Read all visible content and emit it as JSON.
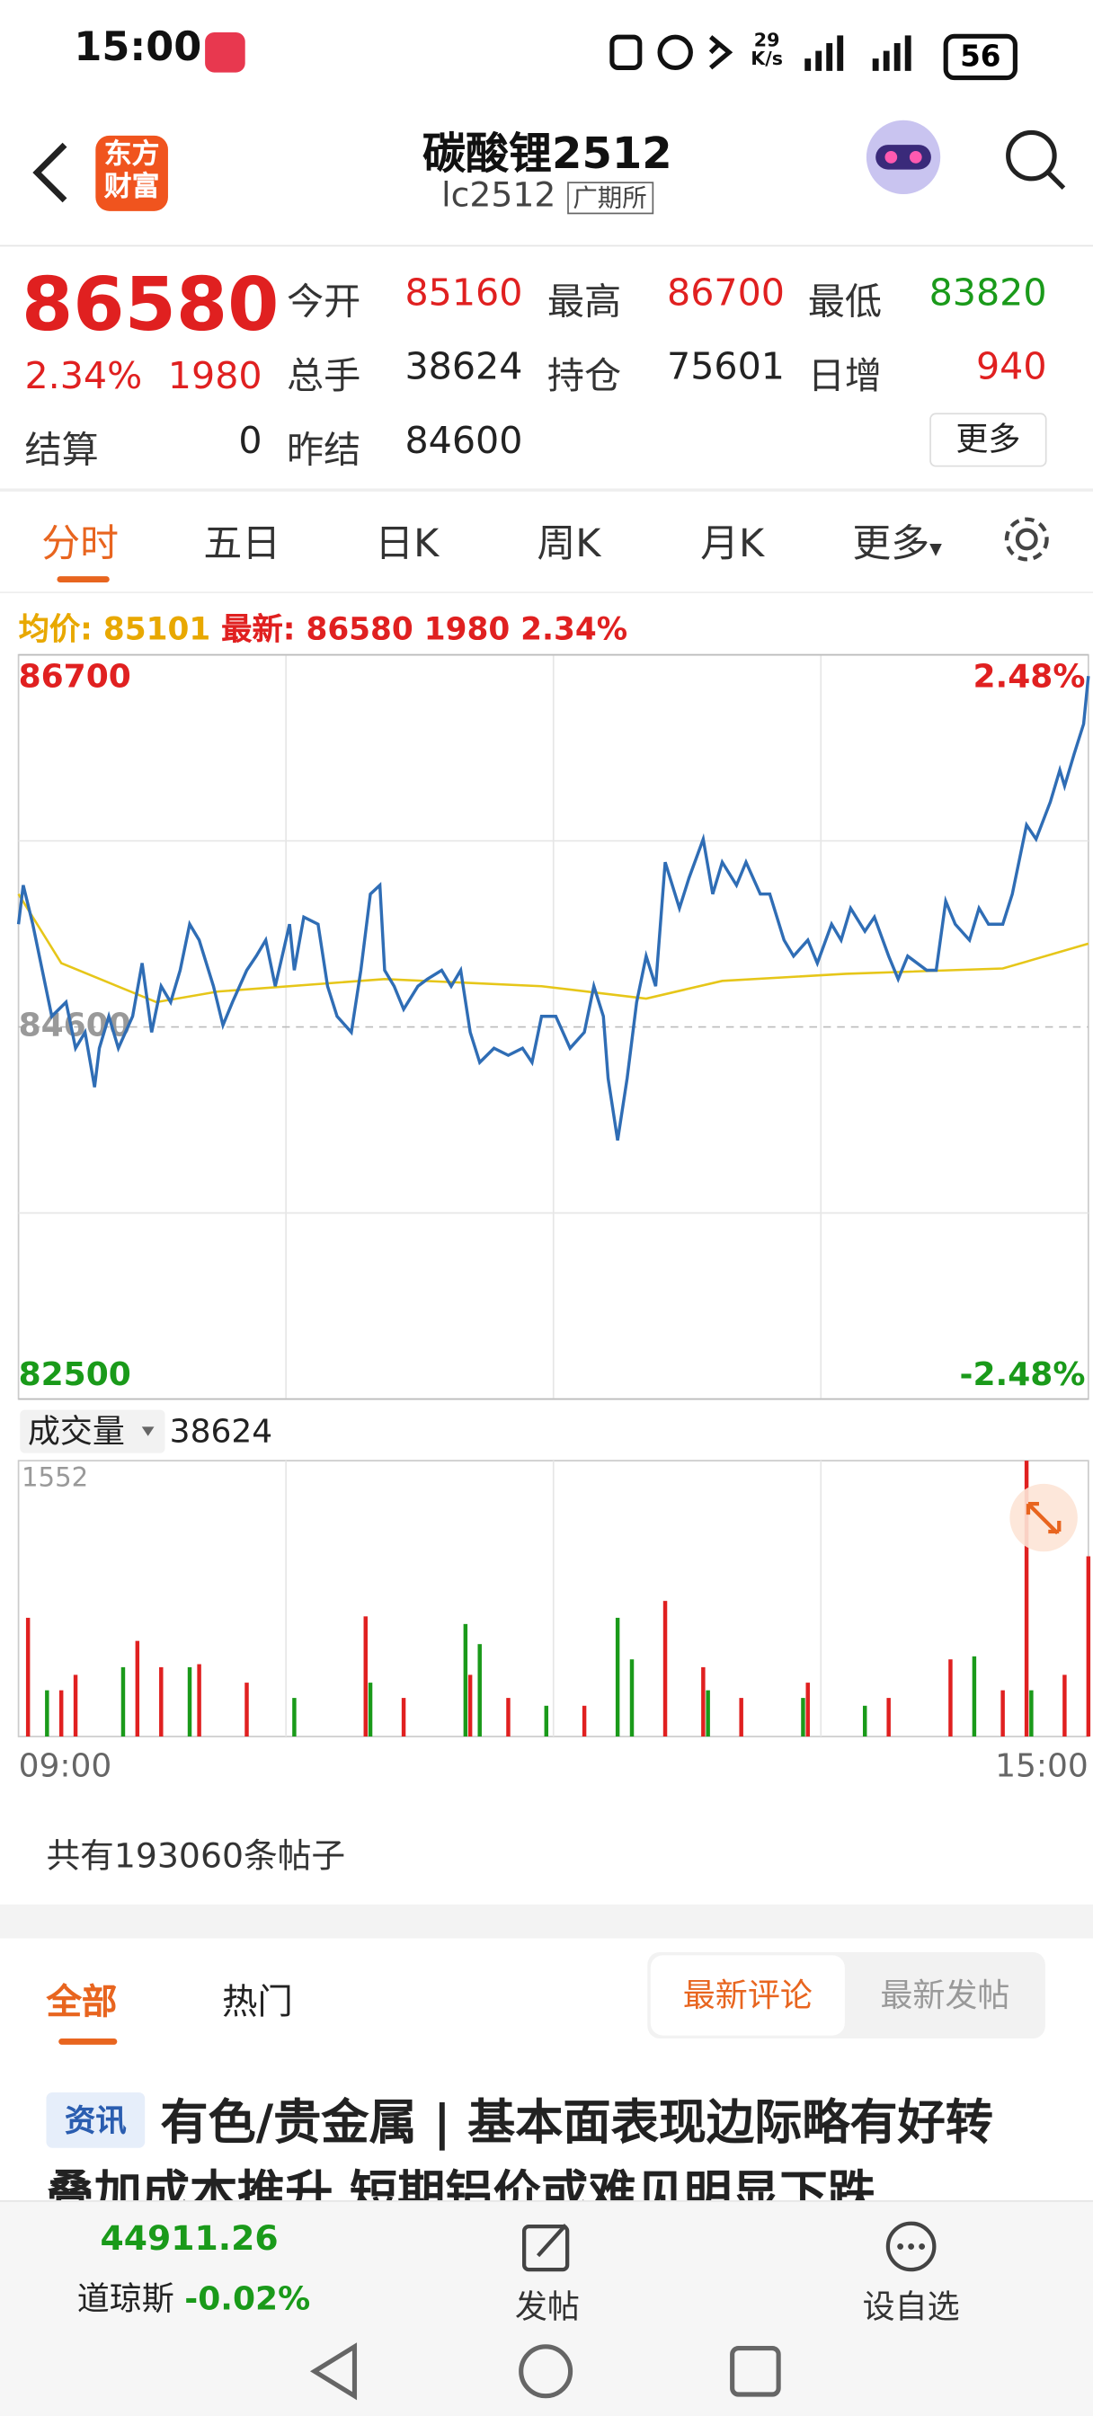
{
  "status_bar": {
    "time": "15:00",
    "net_speed_value": "29",
    "net_speed_unit": "K/s",
    "battery": "56"
  },
  "header": {
    "logo_line1": "东方",
    "logo_line2": "财富",
    "title": "碳酸锂2512",
    "code": "lc2512",
    "exchange": "广期所"
  },
  "quote": {
    "price": "86580",
    "change_pct": "2.34%",
    "change": "1980",
    "more": "更多",
    "fields": [
      {
        "label": "今开",
        "value": "85160"
      },
      {
        "label": "最高",
        "value": "86700"
      },
      {
        "label": "最低",
        "value": "83820"
      },
      {
        "label": "总手",
        "value": "38624"
      },
      {
        "label": "持仓",
        "value": "75601"
      },
      {
        "label": "日增",
        "value": "940"
      },
      {
        "label": "结算",
        "value": "0"
      },
      {
        "label": "昨结",
        "value": "84600"
      }
    ]
  },
  "tabs": [
    "分时",
    "五日",
    "日K",
    "周K",
    "月K",
    "更多"
  ],
  "chart_info": {
    "avg_label": "均价:",
    "avg_value": "85101",
    "latest_label": "最新:",
    "latest_value": "86580 1980 2.34%"
  },
  "price_chart": {
    "type": "line",
    "xlim": [
      0,
      225
    ],
    "xticks": [
      {
        "value": 0,
        "label": "09:00"
      },
      {
        "value": 225,
        "label": "15:00"
      }
    ],
    "ylim": [
      82500,
      86700
    ],
    "yticks": [
      86700,
      84600,
      82500
    ],
    "y2lim": [
      -2.48,
      2.48
    ],
    "y2ticks": [
      {
        "value": 2.48,
        "label": "2.48%"
      },
      {
        "value": -2.48,
        "label": "-2.48%"
      }
    ],
    "series": [
      {
        "color": "#2f6db5",
        "x": [
          0,
          1,
          3,
          5,
          7,
          10,
          12,
          14,
          16,
          17,
          19,
          21,
          24,
          26,
          28,
          30,
          32,
          34,
          36,
          38,
          41,
          43,
          45,
          48,
          50,
          52,
          54,
          57,
          58,
          60,
          63,
          65,
          67,
          70,
          72,
          74,
          76,
          77,
          79,
          81,
          84,
          86,
          89,
          91,
          93,
          95,
          97,
          100,
          103,
          106,
          108,
          110,
          113,
          116,
          119,
          121,
          123,
          124,
          126,
          128,
          130,
          132,
          134,
          136,
          139,
          141,
          144,
          146,
          148,
          151,
          153,
          156,
          158,
          161,
          163,
          166,
          168,
          171,
          173,
          175,
          178,
          180,
          183,
          185,
          187,
          191,
          193,
          195,
          197,
          200,
          202,
          204,
          207,
          209,
          212,
          214,
          217,
          219,
          220,
          222,
          224,
          225
        ],
        "values": [
          85180,
          85400,
          85180,
          84920,
          84660,
          84740,
          84480,
          84570,
          84260,
          84480,
          84660,
          84480,
          84660,
          84960,
          84570,
          84830,
          84740,
          84920,
          85180,
          85090,
          84830,
          84610,
          84740,
          84920,
          85000,
          85090,
          84830,
          85180,
          84920,
          85220,
          85180,
          84830,
          84660,
          84570,
          84920,
          85350,
          85400,
          84920,
          84830,
          84700,
          84830,
          84870,
          84920,
          84830,
          84920,
          84570,
          84400,
          84480,
          84440,
          84480,
          84400,
          84660,
          84660,
          84480,
          84570,
          84830,
          84660,
          84310,
          83960,
          84310,
          84740,
          85000,
          84830,
          85530,
          85270,
          85440,
          85660,
          85350,
          85530,
          85400,
          85530,
          85350,
          85350,
          85090,
          85000,
          85090,
          84960,
          85180,
          85090,
          85270,
          85140,
          85220,
          85000,
          84870,
          85000,
          84920,
          84920,
          85310,
          85180,
          85090,
          85270,
          85180,
          85180,
          85350,
          85740,
          85660,
          85870,
          86050,
          85960,
          86140,
          86310,
          86580
        ]
      },
      {
        "color": "#e6c619",
        "x": [
          0,
          9,
          29,
          42,
          77,
          110,
          132,
          148,
          174,
          207,
          225
        ],
        "values": [
          85350,
          84960,
          84740,
          84800,
          84870,
          84830,
          84760,
          84860,
          84900,
          84930,
          85070
        ]
      }
    ]
  },
  "volume_chart": {
    "type": "bar",
    "title": "成交量",
    "total": "38624",
    "xlim": [
      0,
      225
    ],
    "ylim": [
      0,
      1552
    ],
    "yticks": [
      1552
    ],
    "series": [
      {
        "color": "#e02020",
        "x": [
          2,
          9,
          12,
          25,
          30,
          38,
          48,
          73,
          81,
          95,
          103,
          119,
          136,
          144,
          152,
          166,
          183,
          196,
          207,
          212,
          220,
          225
        ],
        "values": [
          668,
          260,
          347,
          538,
          390,
          407,
          303,
          676,
          217,
          347,
          217,
          173,
          763,
          390,
          217,
          303,
          217,
          434,
          260,
          1552,
          347,
          1014
        ]
      },
      {
        "color": "#1a9a1a",
        "x": [
          6,
          22,
          36,
          58,
          74,
          94,
          97,
          111,
          126,
          129,
          145,
          165,
          178,
          201,
          213
        ],
        "values": [
          260,
          390,
          390,
          217,
          303,
          633,
          520,
          173,
          668,
          434,
          260,
          217,
          173,
          451,
          260
        ]
      }
    ]
  },
  "posts": {
    "count_text": "共有193060条帖子",
    "tabs": [
      "全部",
      "热门"
    ],
    "sort": [
      "最新评论",
      "最新发帖"
    ],
    "item": {
      "tag": "资讯",
      "title": "有色/贵金属 | 基本面表现边际略有好转叠加成本推升 短期铝价或难见明显下跌"
    }
  },
  "bottom_bar": {
    "index_value": "44911.26",
    "index_name": "道琼斯",
    "index_change": "-0.02%",
    "actions": [
      "发帖",
      "设自选"
    ]
  }
}
